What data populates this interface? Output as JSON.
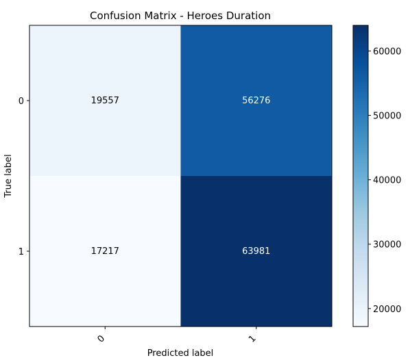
{
  "chart_data": {
    "type": "heatmap",
    "title": "Confusion Matrix - Heroes Duration",
    "xlabel": "Predicted label",
    "ylabel": "True label",
    "x_categories": [
      "0",
      "1"
    ],
    "y_categories": [
      "0",
      "1"
    ],
    "values": [
      [
        19557,
        56276
      ],
      [
        17217,
        63981
      ]
    ],
    "colormap": "Blues",
    "colorbar": {
      "range": [
        17217,
        63981
      ],
      "ticks": [
        20000,
        30000,
        40000,
        50000,
        60000
      ],
      "tick_labels": [
        "20000",
        "30000",
        "40000",
        "50000",
        "60000"
      ]
    }
  }
}
